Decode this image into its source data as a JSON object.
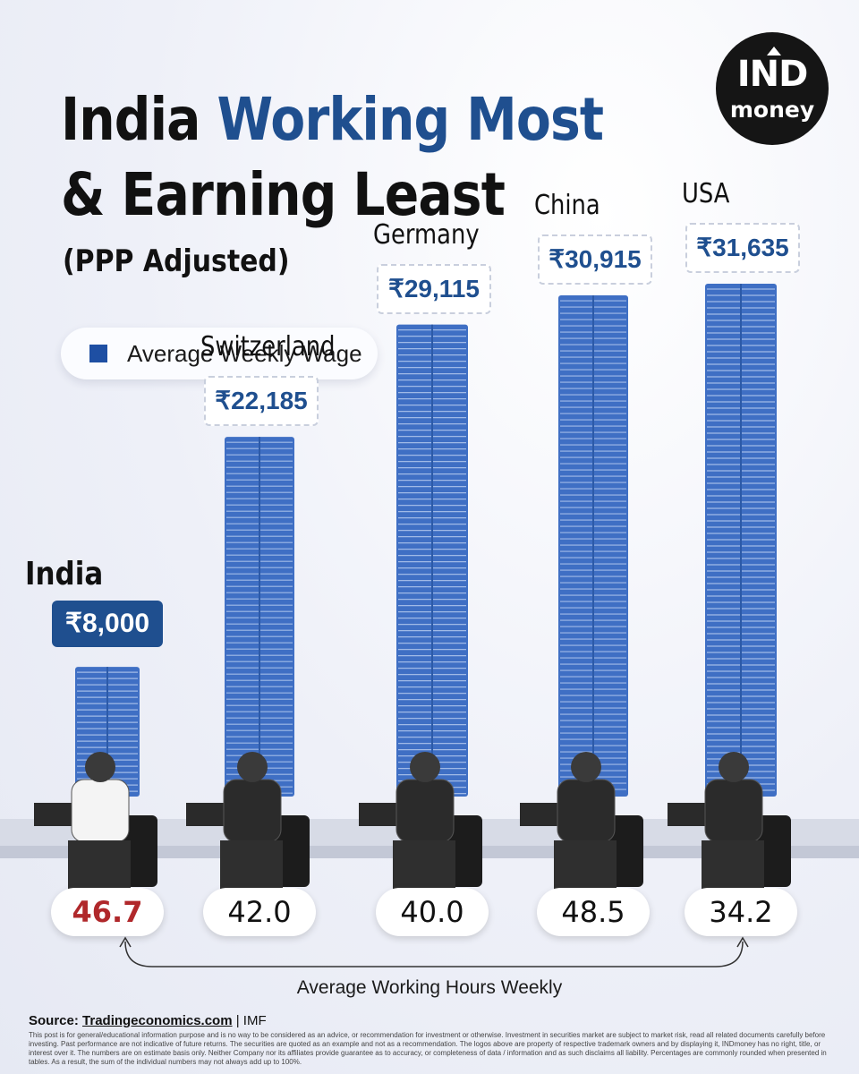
{
  "header": {
    "title_line1_plain": "India ",
    "title_line1_highlight": "Working Most",
    "title_line2": "& Earning Least",
    "subtitle": "(PPP Adjusted)"
  },
  "logo": {
    "line1": "IND",
    "line2": "money"
  },
  "legend": {
    "label": "Average Weekly Wage",
    "swatch_color": "#1e4fa3"
  },
  "chart_data": {
    "type": "bar",
    "categories": [
      "India",
      "Switzerland",
      "Germany",
      "China",
      "USA"
    ],
    "series": [
      {
        "name": "Average Weekly Wage",
        "values": [
          8000,
          22185,
          29115,
          30915,
          31635
        ]
      }
    ],
    "wage_labels": [
      "₹8,000",
      "₹22,185",
      "₹29,115",
      "₹30,915",
      "₹31,635"
    ],
    "hours": [
      "46.7",
      "42.0",
      "40.0",
      "48.5",
      "34.2"
    ],
    "hours_label": "Average Working Hours Weekly",
    "highlight_category": "India",
    "colors": {
      "bar": "#3f6fc4",
      "highlight_hours": "#b0282b",
      "highlight_label_bg": "#1f4f8f"
    }
  },
  "footer": {
    "source_prefix": "Source: ",
    "source_link": "Tradingeconomics.com",
    "source_suffix": " | IMF",
    "disclaimer": "This post is for general/educational information purpose and is no way to be considered as an advice, or recommendation for investment or otherwise. Investment in securities market are subject to market risk, read all related documents carefully before investing. Past performance are not indicative of future returns. The securities are quoted as an example and not as a recommendation. The logos above are property of respective trademark owners and by displaying it, INDmoney has no right, title, or interest over it. The numbers are on estimate basis only. Neither Company nor its affiliates provide guarantee as to accuracy, or completeness of data / information and as such disclaims all liability. Percentages are commonly rounded when presented in tables. As a result, the sum of the individual numbers may not always add up to 100%."
  }
}
